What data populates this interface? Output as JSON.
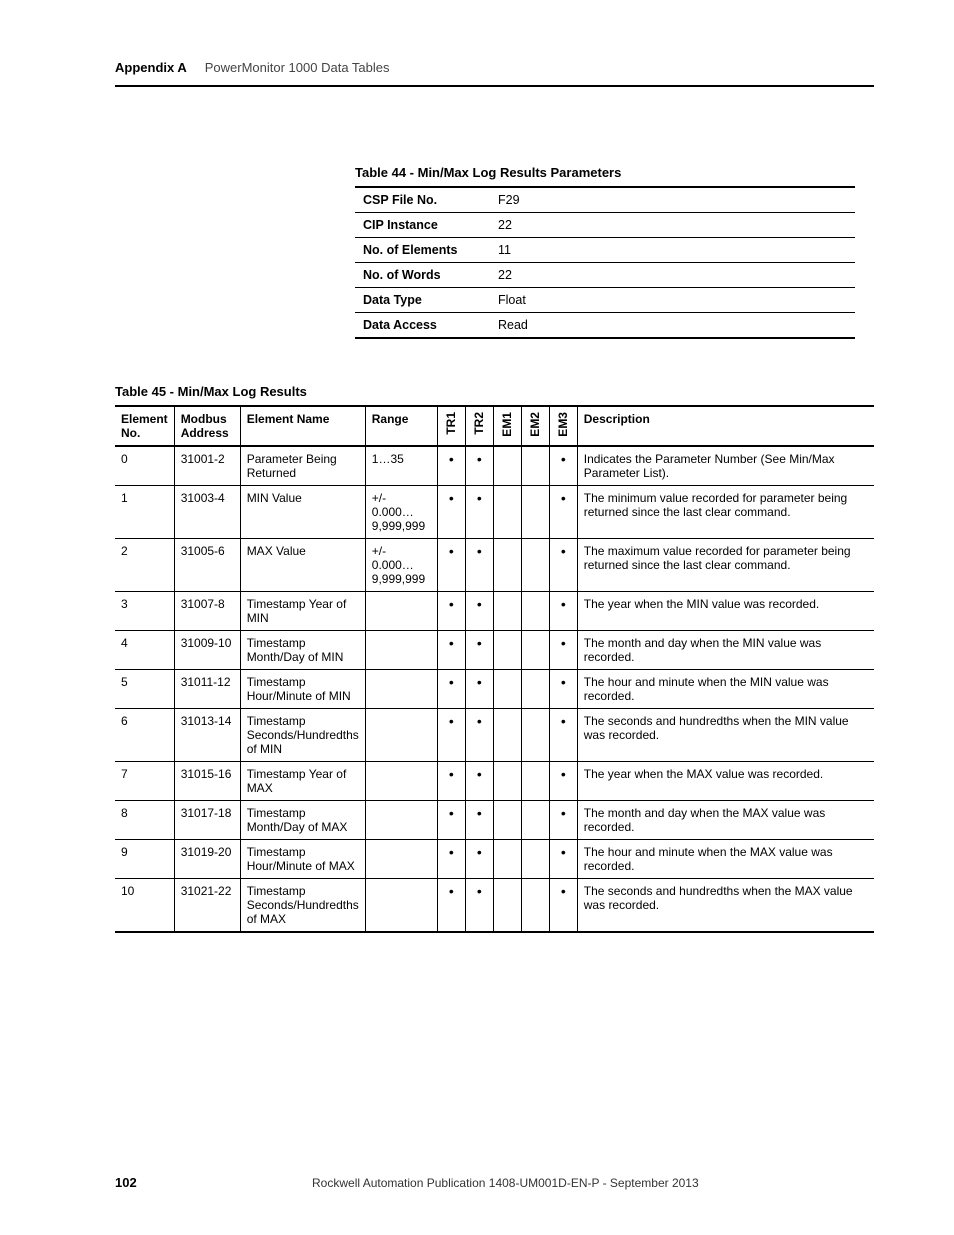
{
  "header": {
    "appendix": "Appendix A",
    "chapter": "PowerMonitor 1000 Data Tables"
  },
  "param_table": {
    "caption": "Table 44 - Min/Max Log Results Parameters",
    "rows": [
      {
        "label": "CSP File No.",
        "value": "F29"
      },
      {
        "label": "CIP Instance",
        "value": "22"
      },
      {
        "label": "No. of Elements",
        "value": "11"
      },
      {
        "label": "No. of Words",
        "value": "22"
      },
      {
        "label": "Data Type",
        "value": "Float"
      },
      {
        "label": "Data Access",
        "value": "Read"
      }
    ]
  },
  "results_table": {
    "caption": "Table 45 - Min/Max Log Results",
    "columns": {
      "el": "Element No.",
      "mb": "Modbus Address",
      "nm": "Element Name",
      "rg": "Range",
      "tr1": "TR1",
      "tr2": "TR2",
      "em1": "EM1",
      "em2": "EM2",
      "em3": "EM3",
      "desc": "Description"
    },
    "rows": [
      {
        "el": "0",
        "mb": "31001-2",
        "nm": "Parameter Being Returned",
        "rg": "1…35",
        "tr1": true,
        "tr2": true,
        "em1": false,
        "em2": false,
        "em3": true,
        "desc": "Indicates the Parameter Number (See Min/Max Parameter List)."
      },
      {
        "el": "1",
        "mb": "31003-4",
        "nm": "MIN Value",
        "rg": "+/- 0.000…9,999,999",
        "tr1": true,
        "tr2": true,
        "em1": false,
        "em2": false,
        "em3": true,
        "desc": "The minimum value recorded for parameter being returned since the last clear command."
      },
      {
        "el": "2",
        "mb": "31005-6",
        "nm": "MAX Value",
        "rg": "+/- 0.000…9,999,999",
        "tr1": true,
        "tr2": true,
        "em1": false,
        "em2": false,
        "em3": true,
        "desc": "The maximum value recorded for parameter being returned since the last clear command."
      },
      {
        "el": "3",
        "mb": "31007-8",
        "nm": "Timestamp Year of MIN",
        "rg": "",
        "tr1": true,
        "tr2": true,
        "em1": false,
        "em2": false,
        "em3": true,
        "desc": "The year when the MIN value was recorded."
      },
      {
        "el": "4",
        "mb": "31009-10",
        "nm": "Timestamp Month/Day of MIN",
        "rg": "",
        "tr1": true,
        "tr2": true,
        "em1": false,
        "em2": false,
        "em3": true,
        "desc": "The month and day when the MIN value was recorded."
      },
      {
        "el": "5",
        "mb": "31011-12",
        "nm": "Timestamp Hour/Minute of MIN",
        "rg": "",
        "tr1": true,
        "tr2": true,
        "em1": false,
        "em2": false,
        "em3": true,
        "desc": "The hour and minute when the MIN value was recorded."
      },
      {
        "el": "6",
        "mb": "31013-14",
        "nm": "Timestamp Seconds/Hundredths of MIN",
        "rg": "",
        "tr1": true,
        "tr2": true,
        "em1": false,
        "em2": false,
        "em3": true,
        "desc": "The seconds and hundredths when the MIN value was recorded."
      },
      {
        "el": "7",
        "mb": "31015-16",
        "nm": "Timestamp Year of MAX",
        "rg": "",
        "tr1": true,
        "tr2": true,
        "em1": false,
        "em2": false,
        "em3": true,
        "desc": "The year when the MAX value was recorded."
      },
      {
        "el": "8",
        "mb": "31017-18",
        "nm": "Timestamp Month/Day of MAX",
        "rg": "",
        "tr1": true,
        "tr2": true,
        "em1": false,
        "em2": false,
        "em3": true,
        "desc": "The month and day when the MAX value was recorded."
      },
      {
        "el": "9",
        "mb": "31019-20",
        "nm": "Timestamp Hour/Minute of MAX",
        "rg": "",
        "tr1": true,
        "tr2": true,
        "em1": false,
        "em2": false,
        "em3": true,
        "desc": "The hour and minute when the MAX value was recorded."
      },
      {
        "el": "10",
        "mb": "31021-22",
        "nm": "Timestamp Seconds/Hundredths of MAX",
        "rg": "",
        "tr1": true,
        "tr2": true,
        "em1": false,
        "em2": false,
        "em3": true,
        "desc": "The seconds and hundredths when the MAX value was recorded."
      }
    ]
  },
  "footer": {
    "page": "102",
    "publication": "Rockwell Automation Publication 1408-UM001D-EN-P - September 2013"
  }
}
